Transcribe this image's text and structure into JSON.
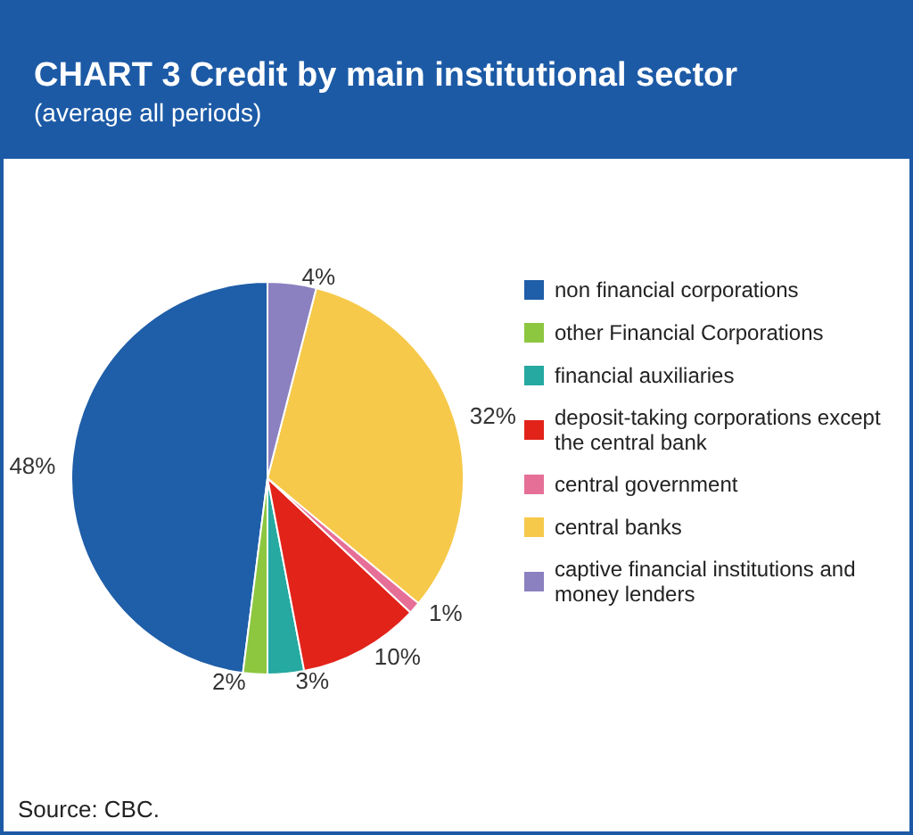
{
  "chart_data": {
    "type": "pie",
    "title": "CHART 3 Credit by main institutional sector",
    "subtitle": "(average all periods)",
    "categories": [
      "non financial corporations",
      "other Financial Corporations",
      "financial auxiliaries",
      "deposit-taking corporations except the central bank",
      "central government",
      "central banks",
      "captive financial institutions and money lenders"
    ],
    "values": [
      48,
      2,
      3,
      10,
      1,
      32,
      4
    ],
    "colors": [
      "#1f5ea8",
      "#8dc63f",
      "#25a9a0",
      "#e2231a",
      "#e66f97",
      "#f6c94a",
      "#8b80c0"
    ],
    "value_labels": [
      "48%",
      "2%",
      "3%",
      "10%",
      "1%",
      "32%",
      "4%"
    ],
    "legend": "right",
    "annotations": [
      "Source: CBC."
    ]
  }
}
